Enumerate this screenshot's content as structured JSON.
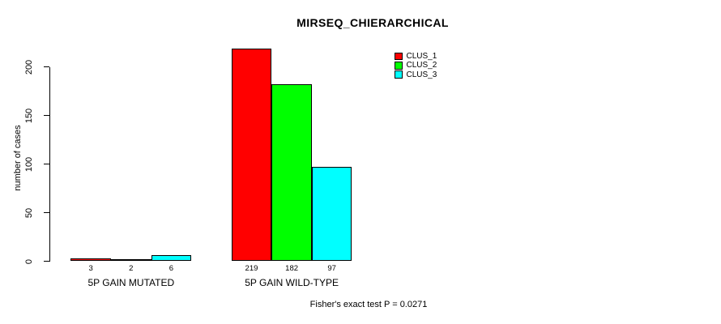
{
  "title": "MIRSEQ_CHIERARCHICAL",
  "ylabel": "number of cases",
  "footer_note": "Fisher's exact test P = 0.0271",
  "chart_data": {
    "type": "bar",
    "title": "MIRSEQ_CHIERARCHICAL",
    "xlabel": "",
    "ylabel": "number of cases",
    "categories": [
      "5P GAIN MUTATED",
      "5P GAIN WILD-TYPE"
    ],
    "series": [
      {
        "name": "CLUS_1",
        "color": "#FF0000",
        "values": [
          3,
          219
        ]
      },
      {
        "name": "CLUS_2",
        "color": "#00FF00",
        "values": [
          2,
          182
        ]
      },
      {
        "name": "CLUS_3",
        "color": "#00FFFF",
        "values": [
          6,
          97
        ]
      }
    ],
    "bar_value_labels_shown": true,
    "yticks": [
      0,
      50,
      100,
      150,
      200
    ],
    "ylim": [
      0,
      220
    ],
    "grid": false,
    "legend_position": "top-right",
    "legend_entries": [
      "CLUS_1",
      "CLUS_2",
      "CLUS_3"
    ],
    "annotation": "Fisher's exact test P = 0.0271"
  }
}
